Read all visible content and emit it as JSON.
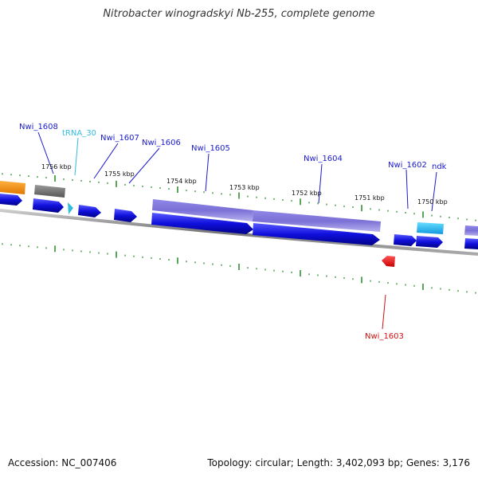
{
  "title": "Nitrobacter winogradskyi Nb-255, complete genome",
  "footer": {
    "accession": "Accession: NC_007406",
    "summary": "Topology: circular; Length: 3,402,093 bp; Genes: 3,176"
  },
  "colors": {
    "gene_label": "#1a1acc",
    "trna_label": "#33bbdd",
    "reverse_label": "#cc1111",
    "cds_blue": "#1010dd",
    "feature_purple": "#7a70d6",
    "tick_green": "#228822",
    "orange": "#f29000",
    "gray": "#777777",
    "cyan": "#22bbee",
    "red": "#ee1111"
  },
  "kbp_labels": [
    "1756 kbp",
    "1755 kbp",
    "1754 kbp",
    "1753 kbp",
    "1752 kbp",
    "1751 kbp",
    "1750 kbp"
  ],
  "genes": [
    {
      "name": "Nwi_1608",
      "type": "CDS"
    },
    {
      "name": "tRNA_30",
      "type": "tRNA"
    },
    {
      "name": "Nwi_1607",
      "type": "CDS"
    },
    {
      "name": "Nwi_1606",
      "type": "CDS"
    },
    {
      "name": "Nwi_1605",
      "type": "CDS"
    },
    {
      "name": "Nwi_1604",
      "type": "CDS"
    },
    {
      "name": "Nwi_1602",
      "type": "CDS"
    },
    {
      "name": "ndk",
      "type": "CDS"
    },
    {
      "name": "Nwi_1603",
      "type": "CDS",
      "strand": "reverse"
    }
  ]
}
